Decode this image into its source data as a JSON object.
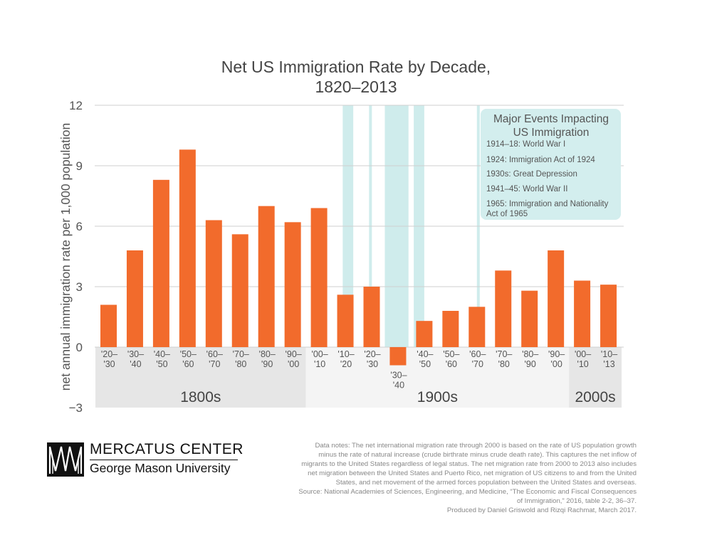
{
  "title": {
    "line1": "Net US Immigration Rate by Decade,",
    "line2": "1820–2013"
  },
  "chart_data": {
    "type": "bar",
    "title": "Net US Immigration Rate by Decade, 1820–2013",
    "ylabel": "net annual immigration rate per 1,000 population",
    "xlabel": "",
    "ylim": [
      -3,
      12
    ],
    "yticks": [
      -3,
      0,
      3,
      6,
      9,
      12
    ],
    "ytick_labels": [
      "−3",
      "0",
      "3",
      "6",
      "9",
      "12"
    ],
    "grid": true,
    "bar_color": "#f26b2c",
    "categories": [
      [
        "'20–",
        "'30"
      ],
      [
        "'30–",
        "'40"
      ],
      [
        "'40–",
        "'50"
      ],
      [
        "'50–",
        "'60"
      ],
      [
        "'60–",
        "'70"
      ],
      [
        "'70–",
        "'80"
      ],
      [
        "'80–",
        "'90"
      ],
      [
        "'90–",
        "'00"
      ],
      [
        "'00–",
        "'10"
      ],
      [
        "'10–",
        "'20"
      ],
      [
        "'20–",
        "'30"
      ],
      [
        "'30–",
        "'40"
      ],
      [
        "'40–",
        "'50"
      ],
      [
        "'50–",
        "'60"
      ],
      [
        "'60–",
        "'70"
      ],
      [
        "'70–",
        "'80"
      ],
      [
        "'80–",
        "'90"
      ],
      [
        "'90–",
        "'00"
      ],
      [
        "'00–",
        "'10"
      ],
      [
        "'10–",
        "'13"
      ]
    ],
    "values": [
      2.1,
      4.8,
      8.3,
      9.8,
      6.3,
      5.6,
      7.0,
      6.2,
      6.9,
      2.6,
      3.0,
      -0.9,
      1.3,
      1.8,
      2.0,
      3.8,
      2.8,
      4.8,
      3.3,
      3.1
    ],
    "centuries": [
      {
        "label": "1800s",
        "first": 0,
        "last": 7,
        "color": "#e6e6e6"
      },
      {
        "label": "1900s",
        "first": 8,
        "last": 17,
        "color": "#f4f4f4"
      },
      {
        "label": "2000s",
        "first": 18,
        "last": 19,
        "color": "#e6e6e6"
      }
    ],
    "event_bands": [
      {
        "start_year": 1914,
        "end_year": 1918,
        "label": "1914–18: World War I"
      },
      {
        "start_year": 1924,
        "end_year": 1924,
        "label": "1924: Immigration Act of 1924"
      },
      {
        "start_year": 1930,
        "end_year": 1939,
        "label": "1930s: Great Depression"
      },
      {
        "start_year": 1941,
        "end_year": 1945,
        "label": "1941–45: World War II"
      },
      {
        "start_year": 1965,
        "end_year": 1965,
        "label": "1965: Immigration and Nationality Act of 1965"
      }
    ],
    "event_color": "#cfecec",
    "legend": {
      "title_line1": "Major Events Impacting",
      "title_line2": "US Immigration",
      "items": [
        [
          "1914–18: World War I"
        ],
        [
          "1924: Immigration Act of 1924"
        ],
        [
          "1930s: Great Depression"
        ],
        [
          "1941–45: World War II"
        ],
        [
          "1965: Immigration and Nationality",
          "Act of 1965"
        ]
      ],
      "placement": "top-right",
      "color": "#d3eeee"
    }
  },
  "logo": {
    "name": "MERCATUS CENTER",
    "sub": "George Mason University"
  },
  "notes": [
    "Data notes: The net international migration rate through 2000 is based on the rate of US population growth",
    "minus the rate of natural increase (crude birthrate minus crude death rate). This captures the net inflow of",
    "migrants to the United States regardless of legal status. The net migration rate from 2000 to 2013 also includes",
    "net migration between the United States and Puerto Rico, net migration of US citizens to and from the United",
    "States, and net movement of the armed forces population between the United States and overseas.",
    "Source: National Academies of Sciences, Engineering, and Medicine, “The Economic and Fiscal Consequences",
    "of Immigration,” 2016, table 2-2, 36–37.",
    "Produced by Daniel Griswold and Rizqi Rachmat, March 2017."
  ]
}
